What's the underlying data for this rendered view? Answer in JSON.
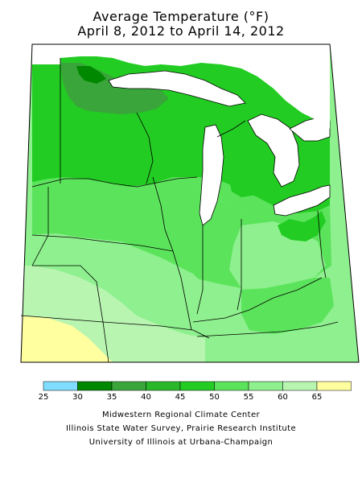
{
  "title": {
    "line1": "Average Temperature (°F)",
    "line2": "April 8, 2012 to April 14, 2012"
  },
  "legend": {
    "ticks": [
      "25",
      "30",
      "35",
      "40",
      "45",
      "50",
      "55",
      "60",
      "65"
    ],
    "colors": [
      "#80ddff",
      "#008800",
      "#3aa53a",
      "#2ab82a",
      "#22cc22",
      "#5ce35c",
      "#8ef08e",
      "#b8f5b0",
      "#ffffa0"
    ]
  },
  "credits": {
    "line1": "Midwestern Regional Climate Center",
    "line2": "Illinois State Water Survey, Prairie Research Institute",
    "line3": "University of Illinois at Urbana-Champaign"
  },
  "map_colors": {
    "lake": "#ffffff",
    "border": "#000000"
  }
}
